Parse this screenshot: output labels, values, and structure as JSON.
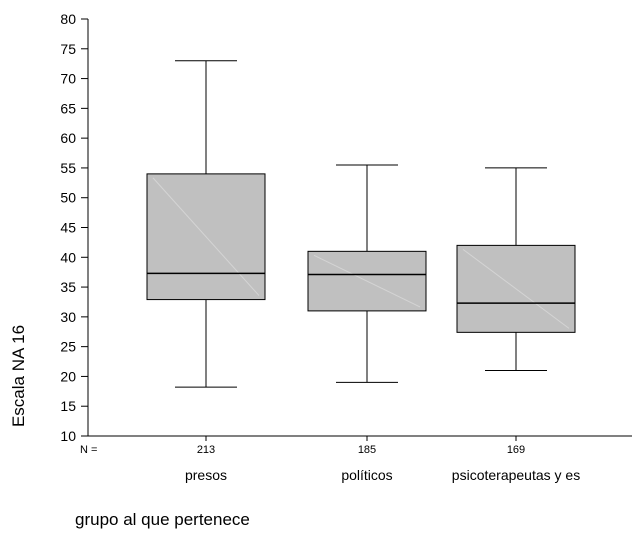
{
  "chart_data": {
    "type": "boxplot",
    "ylabel": "Escala NA 16",
    "xlabel": "grupo al que pertenece",
    "ylim": [
      10,
      80
    ],
    "yticks": [
      10,
      15,
      20,
      25,
      30,
      35,
      40,
      45,
      50,
      55,
      60,
      65,
      70,
      75,
      80
    ],
    "n_prefix": "N =",
    "box_color": "#c0c0c0",
    "groups": [
      {
        "name": "presos",
        "n": "213",
        "min": 18.2,
        "q1": 32.9,
        "median": 37.3,
        "q3": 54,
        "max": 73
      },
      {
        "name": "políticos",
        "n": "185",
        "min": 19,
        "q1": 31,
        "median": 37.1,
        "q3": 41,
        "max": 55.5
      },
      {
        "name": "psicoterapeutas y es",
        "n": "169",
        "min": 21,
        "q1": 27.4,
        "median": 32.3,
        "q3": 42,
        "max": 55
      }
    ]
  }
}
